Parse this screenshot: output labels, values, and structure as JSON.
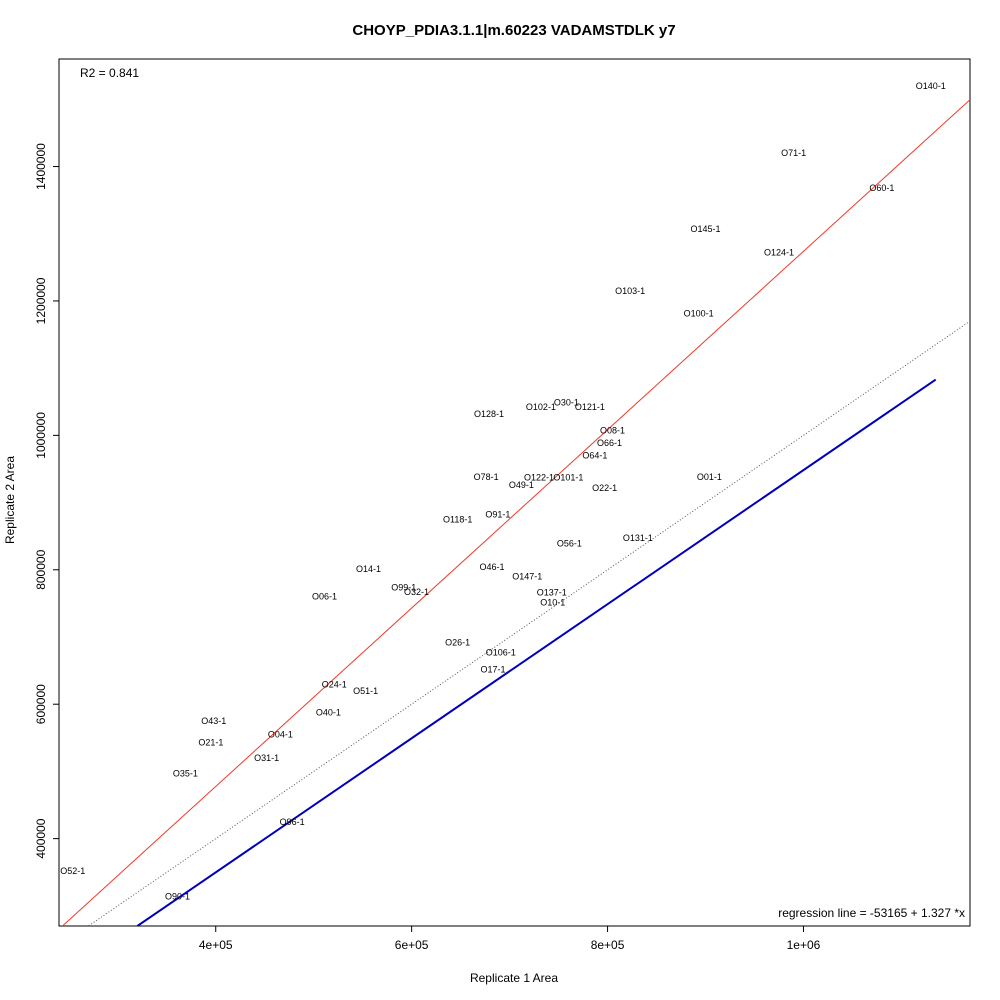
{
  "chart_data": {
    "type": "scatter",
    "title": "CHOYP_PDIA3.1.1|m.60223 VADAMSTDLK y7",
    "xlabel": "Replicate 1 Area",
    "ylabel": "Replicate 2 Area",
    "xlim": [
      240000,
      1170000
    ],
    "ylim": [
      270000,
      1560000
    ],
    "x_ticks": [
      400000,
      600000,
      800000,
      1000000
    ],
    "x_tick_labels": [
      "4e+05",
      "6e+05",
      "8e+05",
      "1e+06"
    ],
    "y_ticks": [
      400000,
      600000,
      800000,
      1000000,
      1200000,
      1400000
    ],
    "y_tick_labels": [
      "400000",
      "600000",
      "800000",
      "1000000",
      "1200000",
      "1400000"
    ],
    "r2_text": "R2 = 0.841",
    "regression_text": "regression line = -53165 + 1.327 *x",
    "regression": {
      "intercept": -53165,
      "slope": 1.327,
      "color": "#ee3b2b"
    },
    "identity_line": {
      "intercept": 0,
      "slope": 1,
      "style": "dotted",
      "color": "#555555"
    },
    "blue_line": {
      "x": [
        320000,
        1135000
      ],
      "y": [
        270000,
        1083000
      ],
      "color": "#0000bb"
    },
    "points": [
      {
        "label": "O140-1",
        "x": 1130000,
        "y": 1520000
      },
      {
        "label": "O71-1",
        "x": 990000,
        "y": 1420000
      },
      {
        "label": "O60-1",
        "x": 1080000,
        "y": 1368000
      },
      {
        "label": "O145-1",
        "x": 900000,
        "y": 1307000
      },
      {
        "label": "O124-1",
        "x": 975000,
        "y": 1272000
      },
      {
        "label": "O103-1",
        "x": 823000,
        "y": 1215000
      },
      {
        "label": "O100-1",
        "x": 893000,
        "y": 1181000
      },
      {
        "label": "O30-1",
        "x": 758000,
        "y": 1049000
      },
      {
        "label": "O121-1",
        "x": 782000,
        "y": 1042000
      },
      {
        "label": "O102-1",
        "x": 732000,
        "y": 1042000
      },
      {
        "label": "O128-1",
        "x": 679000,
        "y": 1032000
      },
      {
        "label": "O08-1",
        "x": 805000,
        "y": 1007000
      },
      {
        "label": "O66-1",
        "x": 802000,
        "y": 989000
      },
      {
        "label": "O64-1",
        "x": 787000,
        "y": 970000
      },
      {
        "label": "O78-1",
        "x": 676000,
        "y": 938000
      },
      {
        "label": "O122-1",
        "x": 730000,
        "y": 937000
      },
      {
        "label": "O101-1",
        "x": 760000,
        "y": 937000
      },
      {
        "label": "O01-1",
        "x": 904000,
        "y": 938000
      },
      {
        "label": "O49-1",
        "x": 712000,
        "y": 926000
      },
      {
        "label": "O22-1",
        "x": 797000,
        "y": 922000
      },
      {
        "label": "O91-1",
        "x": 688000,
        "y": 882000
      },
      {
        "label": "O118-1",
        "x": 647000,
        "y": 875000
      },
      {
        "label": "O131-1",
        "x": 831000,
        "y": 847000
      },
      {
        "label": "O56-1",
        "x": 761000,
        "y": 839000
      },
      {
        "label": "O14-1",
        "x": 556000,
        "y": 801000
      },
      {
        "label": "O46-1",
        "x": 682000,
        "y": 804000
      },
      {
        "label": "O147-1",
        "x": 718000,
        "y": 790000
      },
      {
        "label": "O99-1",
        "x": 592000,
        "y": 774000
      },
      {
        "label": "O32-1",
        "x": 605000,
        "y": 767000
      },
      {
        "label": "O137-1",
        "x": 743000,
        "y": 766000
      },
      {
        "label": "O06-1",
        "x": 511000,
        "y": 760000
      },
      {
        "label": "O10-1",
        "x": 744000,
        "y": 751000
      },
      {
        "label": "O26-1",
        "x": 647000,
        "y": 692000
      },
      {
        "label": "O106-1",
        "x": 691000,
        "y": 677000
      },
      {
        "label": "O17-1",
        "x": 683000,
        "y": 652000
      },
      {
        "label": "O24-1",
        "x": 521000,
        "y": 629000
      },
      {
        "label": "O51-1",
        "x": 553000,
        "y": 620000
      },
      {
        "label": "O40-1",
        "x": 515000,
        "y": 588000
      },
      {
        "label": "O43-1",
        "x": 398000,
        "y": 575000
      },
      {
        "label": "O04-1",
        "x": 466000,
        "y": 555000
      },
      {
        "label": "O21-1",
        "x": 395000,
        "y": 543000
      },
      {
        "label": "O31-1",
        "x": 452000,
        "y": 520000
      },
      {
        "label": "O35-1",
        "x": 369000,
        "y": 497000
      },
      {
        "label": "O96-1",
        "x": 478000,
        "y": 425000
      },
      {
        "label": "O52-1",
        "x": 254000,
        "y": 352000
      },
      {
        "label": "O90-1",
        "x": 361000,
        "y": 314000
      }
    ]
  }
}
